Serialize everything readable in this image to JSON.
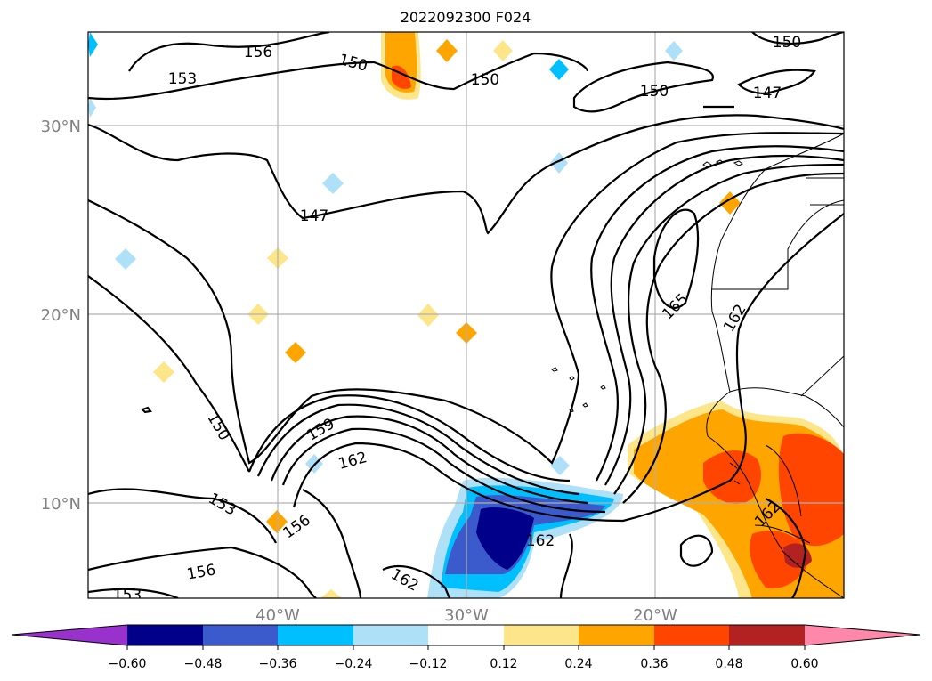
{
  "title": "2022092300 F024",
  "map": {
    "lon_labels": [
      "40°W",
      "30°W",
      "20°W"
    ],
    "lat_labels": [
      "30°N",
      "20°N",
      "10°N"
    ],
    "contour_labels": [
      "156",
      "153",
      "150",
      "150",
      "150",
      "150",
      "147",
      "147",
      "165",
      "162",
      "159",
      "162",
      "150",
      "153",
      "156",
      "156",
      "162",
      "153",
      "162",
      "162"
    ]
  },
  "colorbar": {
    "ticks": [
      "−0.60",
      "−0.48",
      "−0.36",
      "−0.24",
      "−0.12",
      "0.12",
      "0.24",
      "0.36",
      "0.48",
      "0.60"
    ],
    "colors": [
      "#9932cc",
      "#00008b",
      "#3b5bcc",
      "#00bfff",
      "#aee0f8",
      "#ffffff",
      "#fde68a",
      "#ffa500",
      "#ff4500",
      "#b22222",
      "#ff88aa"
    ]
  }
}
